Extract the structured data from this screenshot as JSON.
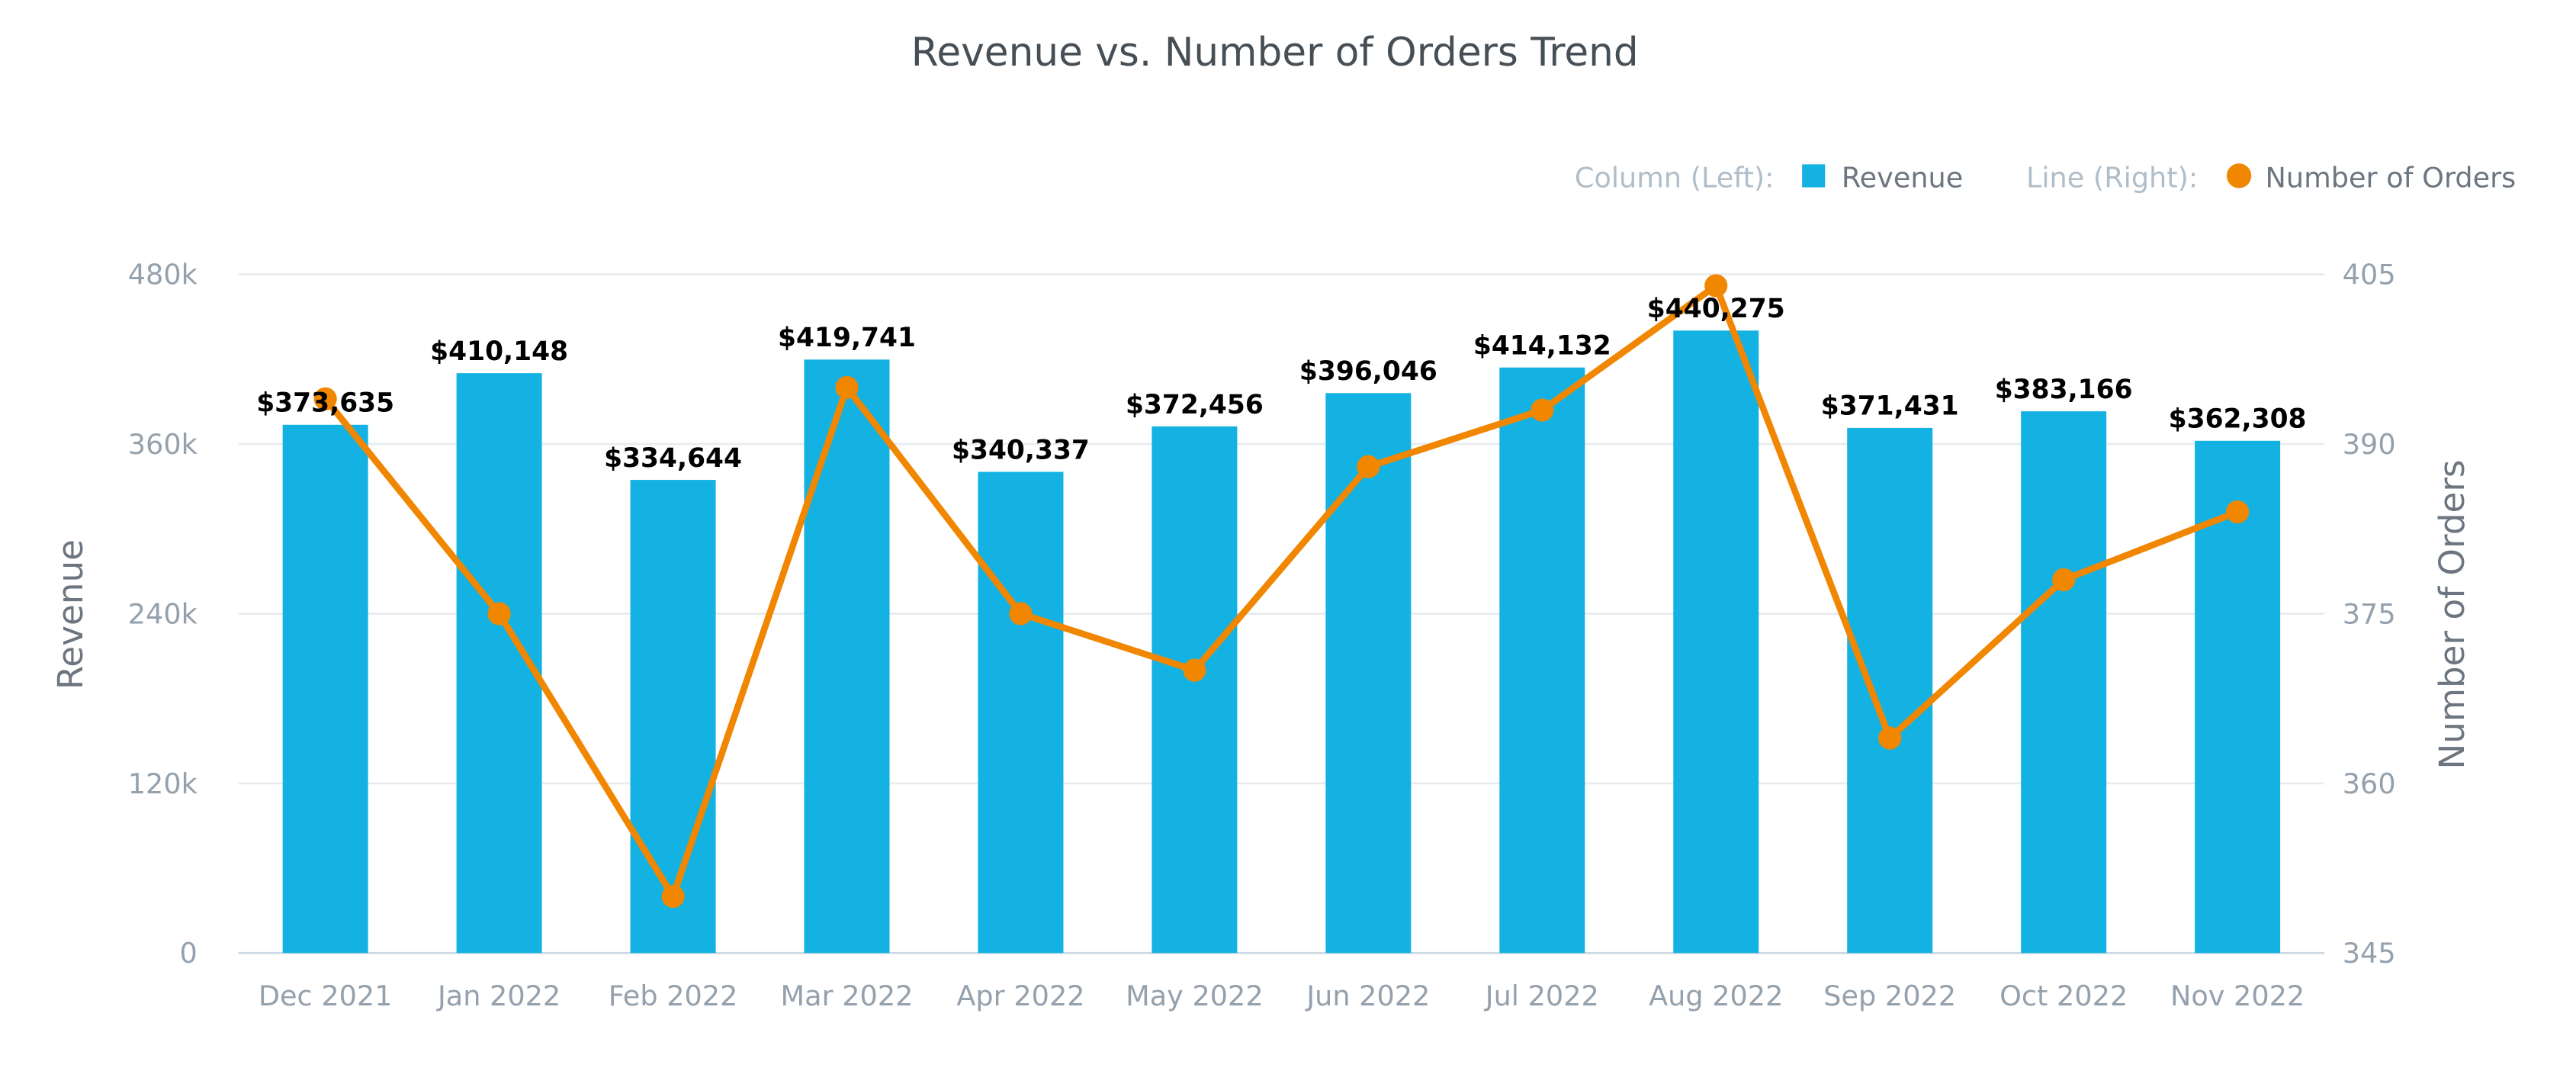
{
  "chart_data": {
    "type": "bar+line",
    "title": "Revenue vs. Number of Orders Trend",
    "categories": [
      "Dec 2021",
      "Jan 2022",
      "Feb 2022",
      "Mar 2022",
      "Apr 2022",
      "May 2022",
      "Jun 2022",
      "Jul 2022",
      "Aug 2022",
      "Sep 2022",
      "Oct 2022",
      "Nov 2022"
    ],
    "series": [
      {
        "name": "Revenue",
        "type": "column",
        "axis": "left",
        "color": "#14b2e2",
        "values": [
          373635,
          410148,
          334644,
          419741,
          340337,
          372456,
          396046,
          414132,
          440275,
          371431,
          383166,
          362308
        ],
        "labels": [
          "$373,635",
          "$410,148",
          "$334,644",
          "$419,741",
          "$340,337",
          "$372,456",
          "$396,046",
          "$414,132",
          "$440,275",
          "$371,431",
          "$383,166",
          "$362,308"
        ]
      },
      {
        "name": "Number of Orders",
        "type": "line",
        "axis": "right",
        "color": "#f18600",
        "values": [
          394,
          375,
          350,
          395,
          375,
          370,
          388,
          393,
          404,
          364,
          378,
          384
        ]
      }
    ],
    "legend": {
      "position": "top-right",
      "column_prefix": "Column (Left):",
      "line_prefix": "Line (Right):"
    },
    "y_left": {
      "label": "Revenue",
      "range": [
        0,
        480000
      ],
      "ticks": [
        "0",
        "120k",
        "240k",
        "360k",
        "480k"
      ]
    },
    "y_right": {
      "label": "Number of Orders",
      "range": [
        345,
        405
      ],
      "ticks": [
        "345",
        "360",
        "375",
        "390",
        "405"
      ]
    },
    "grid": true
  }
}
